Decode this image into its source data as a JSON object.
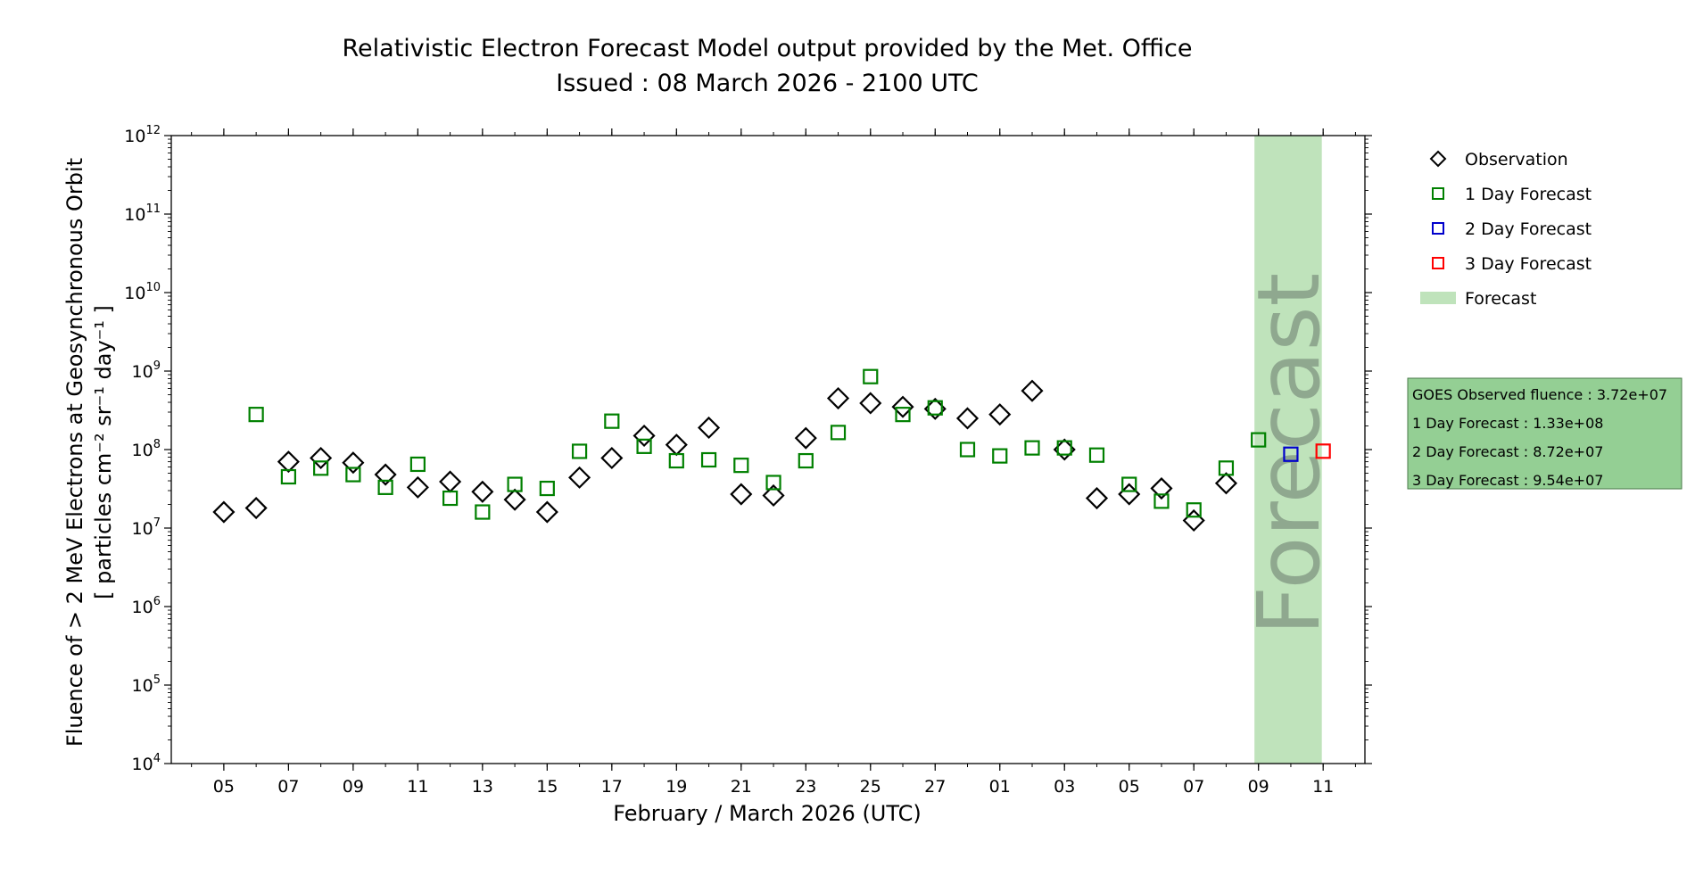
{
  "chart_data": {
    "type": "scatter",
    "title": "Relativistic Electron Forecast Model output provided by the Met. Office",
    "subtitle": "Issued : 08 March 2026 - 2100 UTC",
    "xlabel": "February / March 2026 (UTC)",
    "ylabel_line1": "Fluence of > 2 MeV Electrons at Geosynchronous Orbit",
    "ylabel_line2": "[ particles cm⁻² sr⁻¹ day⁻¹ ]",
    "yscale": "log",
    "ylim": [
      10000,
      1000000000000
    ],
    "xlim": [
      "2026-02-03T09:00",
      "2026-03-12T07:00"
    ],
    "x_ticks": [
      {
        "date": "2026-02-05",
        "label": "05"
      },
      {
        "date": "2026-02-07",
        "label": "07"
      },
      {
        "date": "2026-02-09",
        "label": "09"
      },
      {
        "date": "2026-02-11",
        "label": "11"
      },
      {
        "date": "2026-02-13",
        "label": "13"
      },
      {
        "date": "2026-02-15",
        "label": "15"
      },
      {
        "date": "2026-02-17",
        "label": "17"
      },
      {
        "date": "2026-02-19",
        "label": "19"
      },
      {
        "date": "2026-02-21",
        "label": "21"
      },
      {
        "date": "2026-02-23",
        "label": "23"
      },
      {
        "date": "2026-02-25",
        "label": "25"
      },
      {
        "date": "2026-02-27",
        "label": "27"
      },
      {
        "date": "2026-03-01",
        "label": "01"
      },
      {
        "date": "2026-03-03",
        "label": "03"
      },
      {
        "date": "2026-03-05",
        "label": "05"
      },
      {
        "date": "2026-03-07",
        "label": "07"
      },
      {
        "date": "2026-03-09",
        "label": "09"
      },
      {
        "date": "2026-03-11",
        "label": "11"
      }
    ],
    "y_ticks": [
      {
        "value": 10000,
        "base": "10",
        "exp": "4"
      },
      {
        "value": 100000,
        "base": "10",
        "exp": "5"
      },
      {
        "value": 1000000,
        "base": "10",
        "exp": "6"
      },
      {
        "value": 10000000,
        "base": "10",
        "exp": "7"
      },
      {
        "value": 100000000,
        "base": "10",
        "exp": "8"
      },
      {
        "value": 1000000000,
        "base": "10",
        "exp": "9"
      },
      {
        "value": 10000000000,
        "base": "10",
        "exp": "10"
      },
      {
        "value": 100000000000,
        "base": "10",
        "exp": "11"
      },
      {
        "value": 1000000000000,
        "base": "10",
        "exp": "12"
      }
    ],
    "forecast_region": {
      "start": "2026-03-08T21:00",
      "end": "2026-03-10T23:00",
      "label": "Forecast",
      "color": "#bfe3bb"
    },
    "series": [
      {
        "name": "Observation",
        "marker": "diamond",
        "color": "#000000",
        "points": [
          {
            "x": "2026-02-05",
            "y": 16000000
          },
          {
            "x": "2026-02-06",
            "y": 18000000
          },
          {
            "x": "2026-02-07",
            "y": 70000000
          },
          {
            "x": "2026-02-08",
            "y": 78000000
          },
          {
            "x": "2026-02-09",
            "y": 68000000
          },
          {
            "x": "2026-02-10",
            "y": 48000000
          },
          {
            "x": "2026-02-11",
            "y": 33000000
          },
          {
            "x": "2026-02-12",
            "y": 39000000
          },
          {
            "x": "2026-02-13",
            "y": 29000000
          },
          {
            "x": "2026-02-14",
            "y": 23000000
          },
          {
            "x": "2026-02-15",
            "y": 16000000
          },
          {
            "x": "2026-02-16",
            "y": 44000000
          },
          {
            "x": "2026-02-17",
            "y": 78000000
          },
          {
            "x": "2026-02-18",
            "y": 150000000
          },
          {
            "x": "2026-02-19",
            "y": 115000000
          },
          {
            "x": "2026-02-20",
            "y": 190000000
          },
          {
            "x": "2026-02-21",
            "y": 27000000
          },
          {
            "x": "2026-02-22",
            "y": 26000000
          },
          {
            "x": "2026-02-23",
            "y": 140000000
          },
          {
            "x": "2026-02-24",
            "y": 450000000
          },
          {
            "x": "2026-02-25",
            "y": 390000000
          },
          {
            "x": "2026-02-26",
            "y": 350000000
          },
          {
            "x": "2026-02-27",
            "y": 330000000
          },
          {
            "x": "2026-02-28",
            "y": 250000000
          },
          {
            "x": "2026-03-01",
            "y": 280000000
          },
          {
            "x": "2026-03-02",
            "y": 560000000
          },
          {
            "x": "2026-03-03",
            "y": 100000000
          },
          {
            "x": "2026-03-04",
            "y": 24000000
          },
          {
            "x": "2026-03-05",
            "y": 27000000
          },
          {
            "x": "2026-03-06",
            "y": 32000000
          },
          {
            "x": "2026-03-07",
            "y": 12500000
          },
          {
            "x": "2026-03-08",
            "y": 37200000
          }
        ]
      },
      {
        "name": "1 Day Forecast",
        "marker": "square",
        "color": "#008000",
        "points": [
          {
            "x": "2026-02-06",
            "y": 280000000
          },
          {
            "x": "2026-02-07",
            "y": 45000000
          },
          {
            "x": "2026-02-08",
            "y": 58000000
          },
          {
            "x": "2026-02-09",
            "y": 48000000
          },
          {
            "x": "2026-02-10",
            "y": 33000000
          },
          {
            "x": "2026-02-11",
            "y": 65000000
          },
          {
            "x": "2026-02-12",
            "y": 24000000
          },
          {
            "x": "2026-02-13",
            "y": 16000000
          },
          {
            "x": "2026-02-14",
            "y": 36000000
          },
          {
            "x": "2026-02-15",
            "y": 32000000
          },
          {
            "x": "2026-02-16",
            "y": 95000000
          },
          {
            "x": "2026-02-17",
            "y": 230000000
          },
          {
            "x": "2026-02-18",
            "y": 110000000
          },
          {
            "x": "2026-02-19",
            "y": 72000000
          },
          {
            "x": "2026-02-20",
            "y": 74000000
          },
          {
            "x": "2026-02-21",
            "y": 63000000
          },
          {
            "x": "2026-02-22",
            "y": 38000000
          },
          {
            "x": "2026-02-23",
            "y": 72000000
          },
          {
            "x": "2026-02-24",
            "y": 165000000
          },
          {
            "x": "2026-02-25",
            "y": 850000000
          },
          {
            "x": "2026-02-26",
            "y": 280000000
          },
          {
            "x": "2026-02-27",
            "y": 340000000
          },
          {
            "x": "2026-02-28",
            "y": 100000000
          },
          {
            "x": "2026-03-01",
            "y": 83000000
          },
          {
            "x": "2026-03-02",
            "y": 105000000
          },
          {
            "x": "2026-03-03",
            "y": 105000000
          },
          {
            "x": "2026-03-04",
            "y": 85000000
          },
          {
            "x": "2026-03-05",
            "y": 36000000
          },
          {
            "x": "2026-03-06",
            "y": 22000000
          },
          {
            "x": "2026-03-07",
            "y": 17000000
          },
          {
            "x": "2026-03-08",
            "y": 58000000
          },
          {
            "x": "2026-03-09",
            "y": 133000000
          }
        ]
      },
      {
        "name": "2 Day Forecast",
        "marker": "square",
        "color": "#0000cc",
        "points": [
          {
            "x": "2026-03-10",
            "y": 87200000
          }
        ]
      },
      {
        "name": "3 Day Forecast",
        "marker": "square",
        "color": "#ff0000",
        "points": [
          {
            "x": "2026-03-11",
            "y": 95400000
          }
        ]
      }
    ],
    "legend": {
      "placement": "right-top",
      "items": [
        {
          "label": "Observation",
          "marker": "diamond",
          "color": "#000000"
        },
        {
          "label": "1 Day Forecast",
          "marker": "square",
          "color": "#008000"
        },
        {
          "label": "2 Day Forecast",
          "marker": "square",
          "color": "#0000cc"
        },
        {
          "label": "3 Day Forecast",
          "marker": "square",
          "color": "#ff0000"
        },
        {
          "label": "Forecast",
          "marker": "patch",
          "color": "#bfe3bb"
        }
      ]
    },
    "info_box": {
      "background": "#94cf94",
      "border": "#4a7a4a",
      "lines": [
        "GOES Observed fluence : 3.72e+07",
        "1 Day Forecast : 1.33e+08",
        "2 Day Forecast : 8.72e+07",
        "3 Day Forecast : 9.54e+07"
      ]
    }
  }
}
